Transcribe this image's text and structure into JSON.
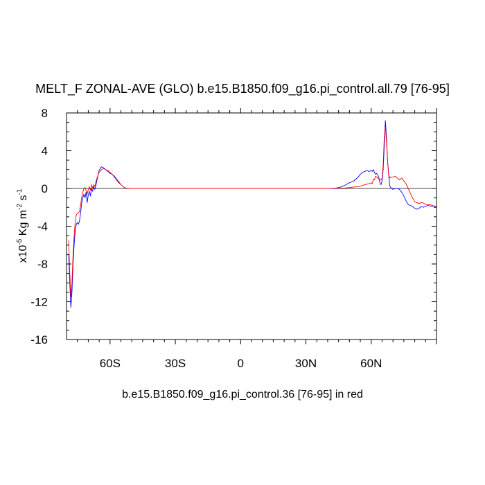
{
  "chart_data": {
    "type": "line",
    "title": "MELT_F ZONAL-AVE (GLO) b.e15.B1850.f09_g16.pi_control.all.79 [76-95]",
    "xlabel": "b.e15.B1850.f09_g16.pi_control.36 [76-95] in red",
    "ylabel": {
      "prefix": "x10",
      "exp1": "-5",
      "unit1": " Kg m",
      "exp2": "-2",
      "unit2": " s",
      "exp3": "-1"
    },
    "xlim": [
      -80,
      90
    ],
    "ylim": [
      -16,
      8
    ],
    "x_ticks": [
      {
        "value": -60,
        "label": "60S"
      },
      {
        "value": -30,
        "label": "30S"
      },
      {
        "value": 0,
        "label": "0"
      },
      {
        "value": 30,
        "label": "30N"
      },
      {
        "value": 60,
        "label": "60N"
      }
    ],
    "y_ticks": [
      {
        "value": 8,
        "label": "8"
      },
      {
        "value": 4,
        "label": "4"
      },
      {
        "value": 0,
        "label": "0"
      },
      {
        "value": -4,
        "label": "-4"
      },
      {
        "value": -8,
        "label": "-8"
      },
      {
        "value": -12,
        "label": "-12"
      },
      {
        "value": -16,
        "label": "-16"
      }
    ],
    "zero_line": true,
    "series": [
      {
        "color": "#0000ff",
        "x": [
          -79,
          -78.5,
          -78,
          -77.5,
          -77,
          -76.5,
          -76,
          -75.5,
          -75,
          -74.5,
          -74,
          -73.5,
          -73,
          -72.5,
          -72,
          -71.5,
          -71,
          -70.5,
          -70,
          -69.5,
          -69,
          -68.5,
          -68,
          -67.5,
          -67,
          -66.5,
          -66,
          -65,
          -64,
          -63,
          -62,
          -61,
          -60,
          -59,
          -58,
          -57,
          -56,
          -55,
          -54,
          -53,
          -52,
          -51,
          -50,
          -48,
          -40,
          -20,
          0,
          20,
          40,
          42,
          44,
          46,
          48,
          50,
          52,
          53,
          54,
          55,
          56,
          57,
          58,
          59,
          60,
          60.5,
          61,
          61.5,
          62,
          62.5,
          63,
          63.5,
          64,
          64.5,
          65,
          65.5,
          66,
          66.5,
          67,
          67.5,
          68,
          68.5,
          69,
          70,
          71,
          72,
          73,
          74,
          75,
          76,
          77,
          78,
          79,
          80,
          81,
          82,
          83,
          84,
          85,
          86,
          87,
          88,
          89,
          90
        ],
        "y": [
          -7,
          -10,
          -12.6,
          -11,
          -8,
          -6,
          -4.5,
          -3.8,
          -3.6,
          -3.8,
          -3.4,
          -2.5,
          -1.5,
          -1.0,
          -0.6,
          -1.0,
          -0.4,
          -1.5,
          -0.7,
          -0.3,
          -0.8,
          0.0,
          -0.3,
          0.2,
          -0.1,
          0.3,
          0.9,
          1.9,
          2.3,
          2.2,
          2.0,
          1.8,
          1.6,
          1.5,
          1.3,
          1.0,
          0.7,
          0.4,
          0.2,
          0.05,
          0.02,
          0.0,
          0.0,
          0.0,
          0.0,
          0.0,
          0.0,
          0.0,
          0.0,
          0.0,
          0.05,
          0.15,
          0.35,
          0.6,
          0.8,
          1.0,
          1.2,
          1.5,
          1.7,
          1.8,
          1.9,
          1.8,
          1.9,
          1.8,
          2.0,
          1.7,
          1.5,
          1.6,
          1.4,
          1.2,
          0.6,
          0.4,
          0.8,
          2.0,
          4.5,
          7.2,
          5.5,
          3.0,
          1.5,
          0.3,
          0.1,
          -0.1,
          0.0,
          0.0,
          -0.1,
          -0.4,
          -0.8,
          -1.3,
          -1.7,
          -1.8,
          -1.9,
          -2.1,
          -2.2,
          -2.1,
          -1.9,
          -2.0,
          -1.9,
          -1.8,
          -1.85,
          -1.9,
          -1.85,
          -1.9
        ]
      },
      {
        "color": "#ff0000",
        "x": [
          -79,
          -78.5,
          -78,
          -77.5,
          -77,
          -76.5,
          -76,
          -75.5,
          -75,
          -74.5,
          -74,
          -73.5,
          -73,
          -72.5,
          -72,
          -71.5,
          -71,
          -70.5,
          -70,
          -69.5,
          -69,
          -68.5,
          -68,
          -67.5,
          -67,
          -66.5,
          -66,
          -65,
          -64,
          -63,
          -62,
          -61,
          -60,
          -59,
          -58,
          -57,
          -56,
          -55,
          -54,
          -53,
          -52,
          -51,
          -50,
          -48,
          -40,
          -20,
          0,
          20,
          40,
          44,
          48,
          50,
          52,
          54,
          56,
          57,
          58,
          59,
          60,
          60.5,
          61,
          61.5,
          62,
          62.5,
          63,
          63.5,
          64,
          64.5,
          65,
          65.5,
          66,
          66.5,
          67,
          67.5,
          68,
          68.5,
          69,
          70,
          71,
          72,
          73,
          74,
          75,
          76,
          77,
          78,
          79,
          80,
          81,
          82,
          83,
          84,
          85,
          86,
          87,
          88,
          89,
          90
        ],
        "y": [
          -5.5,
          -9,
          -11.5,
          -10,
          -7,
          -5,
          -3.5,
          -2.8,
          -2.6,
          -2.6,
          -2.4,
          -1.7,
          -0.9,
          -0.4,
          0.0,
          0.1,
          -0.2,
          -0.6,
          -0.1,
          0.2,
          -0.2,
          0.4,
          0.0,
          0.4,
          0.2,
          0.7,
          1.1,
          1.7,
          2.0,
          2.1,
          2.0,
          1.9,
          1.7,
          1.5,
          1.2,
          0.9,
          0.6,
          0.4,
          0.2,
          0.05,
          0.02,
          0.0,
          0.0,
          0.0,
          0.0,
          0.0,
          0.0,
          0.0,
          0.0,
          0.02,
          0.05,
          0.1,
          0.15,
          0.2,
          0.3,
          0.4,
          0.45,
          0.5,
          0.6,
          0.5,
          1.0,
          0.9,
          1.3,
          1.2,
          1.1,
          1.0,
          0.9,
          0.9,
          1.1,
          2.5,
          5.5,
          6.5,
          5.0,
          3.0,
          1.5,
          1.1,
          1.2,
          1.2,
          1.3,
          1.1,
          0.9,
          1.1,
          0.8,
          0.5,
          0.0,
          -0.5,
          -1.0,
          -1.4,
          -1.5,
          -1.6,
          -1.5,
          -1.55,
          -1.7,
          -1.75,
          -1.7,
          -1.8,
          -1.85,
          -1.9
        ]
      }
    ]
  }
}
